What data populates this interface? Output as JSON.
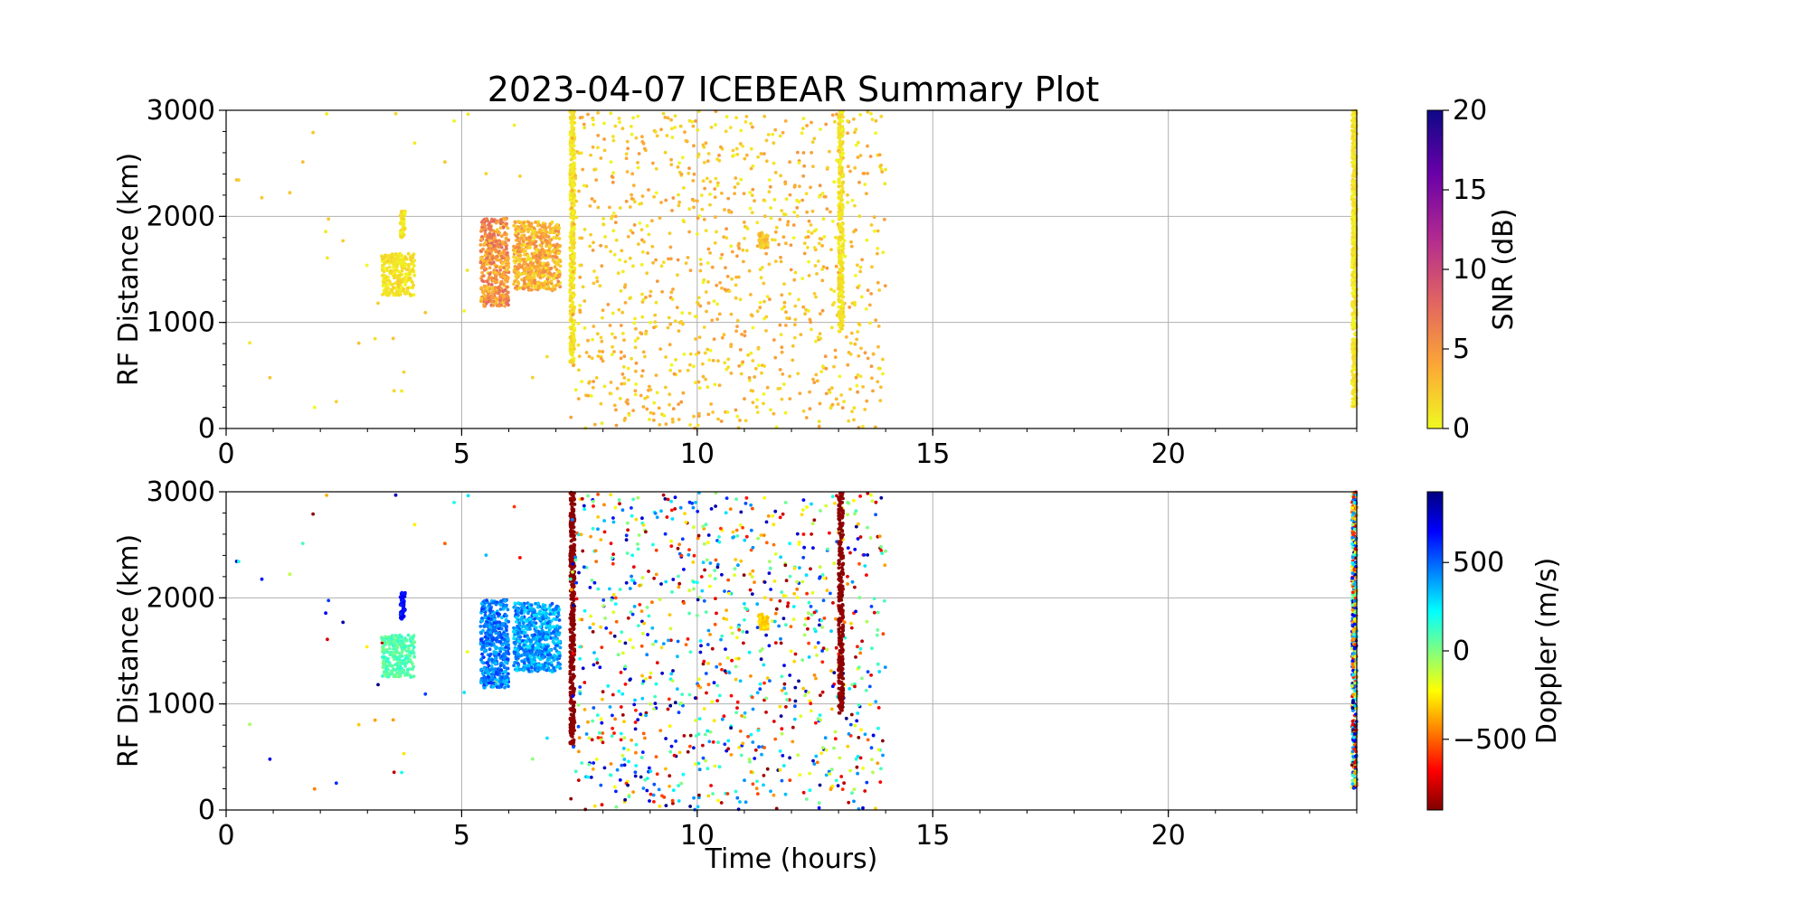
{
  "chart_data": {
    "title": "2023-04-07 ICEBEAR Summary Plot",
    "panels": [
      {
        "id": "snr",
        "type": "scatter",
        "xlabel": "",
        "ylabel": "RF Distance (km)",
        "xlim": [
          0,
          24
        ],
        "ylim": [
          0,
          3000
        ],
        "xticks": [
          "0",
          "5",
          "10",
          "15",
          "20"
        ],
        "yticks": [
          "0",
          "1000",
          "2000",
          "3000"
        ],
        "grid": true,
        "colorbar": {
          "label": "SNR (dB)",
          "range": [
            0,
            20
          ],
          "ticks": [
            "0",
            "5",
            "10",
            "15",
            "20"
          ],
          "colormap": "plasma_r",
          "stops": [
            "#f0f921",
            "#fca636",
            "#e16462",
            "#b12a90",
            "#6a00a8",
            "#0d0887"
          ]
        },
        "value_field": "snr_db"
      },
      {
        "id": "doppler",
        "type": "scatter",
        "xlabel": "Time (hours)",
        "ylabel": "RF Distance (km)",
        "xlim": [
          0,
          24
        ],
        "ylim": [
          0,
          3000
        ],
        "xticks": [
          "0",
          "5",
          "10",
          "15",
          "20"
        ],
        "yticks": [
          "0",
          "1000",
          "2000",
          "3000"
        ],
        "grid": true,
        "colorbar": {
          "label": "Doppler (m/s)",
          "range": [
            -900,
            900
          ],
          "ticks": [
            "−500",
            "0",
            "500"
          ],
          "tick_values": [
            -500,
            0,
            500
          ],
          "colormap": "jet_r",
          "stops": [
            "#800000",
            "#ff0000",
            "#ff8000",
            "#ffff00",
            "#80ff80",
            "#00ffff",
            "#0080ff",
            "#0000ff",
            "#000080"
          ]
        },
        "value_field": "doppler_ms"
      }
    ],
    "series": [
      {
        "kind": "scatter_region",
        "t": [
          0.0,
          7.3
        ],
        "r": [
          0,
          3000
        ],
        "density": 0.018,
        "snr_db": [
          0,
          3
        ],
        "doppler_ms": "random"
      },
      {
        "kind": "cluster",
        "t": [
          3.3,
          4.0
        ],
        "r": [
          1250,
          1650
        ],
        "snr_db": [
          0,
          2
        ],
        "doppler_ms": [
          0,
          150
        ]
      },
      {
        "kind": "cluster",
        "t": [
          3.7,
          3.8
        ],
        "r": [
          1800,
          2050
        ],
        "snr_db": [
          0,
          2
        ],
        "doppler_ms": [
          600,
          750
        ]
      },
      {
        "kind": "cluster",
        "t": [
          5.4,
          6.0
        ],
        "r": [
          1150,
          1980
        ],
        "snr_db": [
          2,
          8
        ],
        "doppler_ms": [
          300,
          600
        ]
      },
      {
        "kind": "cluster",
        "t": [
          6.1,
          7.1
        ],
        "r": [
          1300,
          1950
        ],
        "snr_db": [
          1,
          6
        ],
        "doppler_ms": [
          250,
          550
        ]
      },
      {
        "kind": "streak",
        "t": [
          7.3,
          7.4
        ],
        "r": [
          600,
          3000
        ],
        "snr_db": [
          0,
          2
        ],
        "doppler_ms": [
          -900,
          -850
        ]
      },
      {
        "kind": "scatter_region",
        "t": [
          7.3,
          14.0
        ],
        "r": [
          0,
          3000
        ],
        "density": 0.5,
        "snr_db": [
          0,
          5
        ],
        "doppler_ms": "random"
      },
      {
        "kind": "cluster",
        "t": [
          11.3,
          11.5
        ],
        "r": [
          1700,
          1850
        ],
        "snr_db": [
          1,
          4
        ],
        "doppler_ms": [
          -350,
          -250
        ]
      },
      {
        "kind": "streak",
        "t": [
          13.0,
          13.1
        ],
        "r": [
          900,
          3000
        ],
        "snr_db": [
          0,
          2
        ],
        "doppler_ms": [
          -900,
          -850
        ]
      },
      {
        "kind": "streak",
        "t": [
          23.9,
          24.0
        ],
        "r": [
          200,
          3000
        ],
        "snr_db": [
          0,
          2
        ],
        "doppler_ms": "random"
      }
    ]
  }
}
